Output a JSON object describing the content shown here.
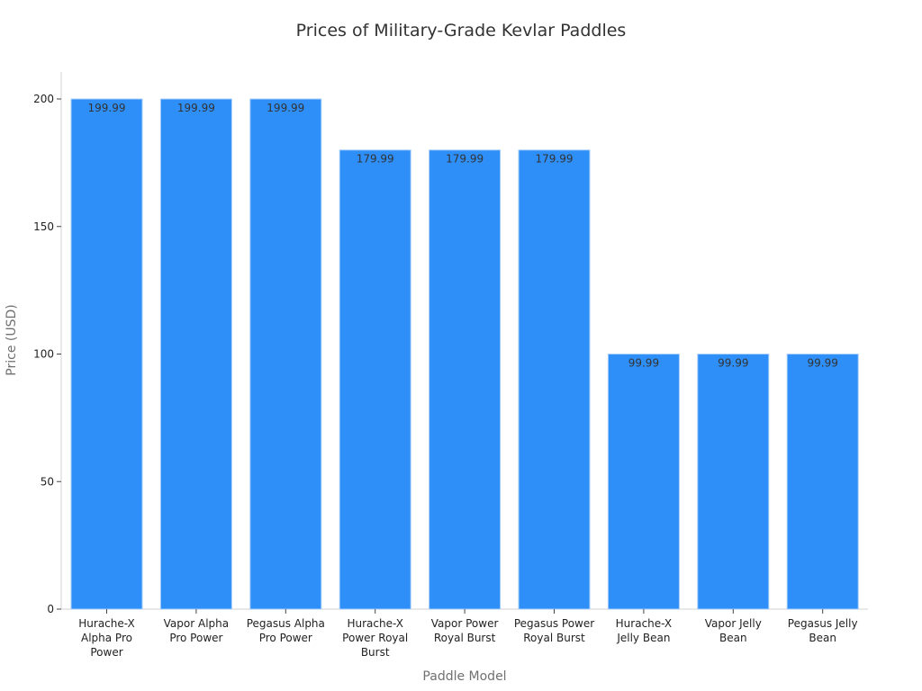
{
  "chart_data": {
    "type": "bar",
    "title": "Prices of Military-Grade Kevlar Paddles",
    "xlabel": "Paddle Model",
    "ylabel": "Price (USD)",
    "categories": [
      "Hurache-X Alpha Pro Power",
      "Vapor Alpha Pro Power",
      "Pegasus Alpha Pro Power",
      "Hurache-X Power Royal Burst",
      "Vapor Power Royal Burst",
      "Pegasus Power Royal Burst",
      "Hurache-X Jelly Bean",
      "Vapor Jelly Bean",
      "Pegasus Jelly Bean"
    ],
    "values": [
      199.99,
      199.99,
      199.99,
      179.99,
      179.99,
      179.99,
      99.99,
      99.99,
      99.99
    ],
    "data_labels": [
      "199.99",
      "199.99",
      "199.99",
      "179.99",
      "179.99",
      "179.99",
      "99.99",
      "99.99",
      "99.99"
    ],
    "yticks": [
      0,
      50,
      100,
      150,
      200
    ],
    "ylim": [
      0,
      210
    ],
    "grid": false,
    "legend": "none",
    "bar_color": "#2e8ff8",
    "bar_edge_color": "#a8cdf8"
  }
}
